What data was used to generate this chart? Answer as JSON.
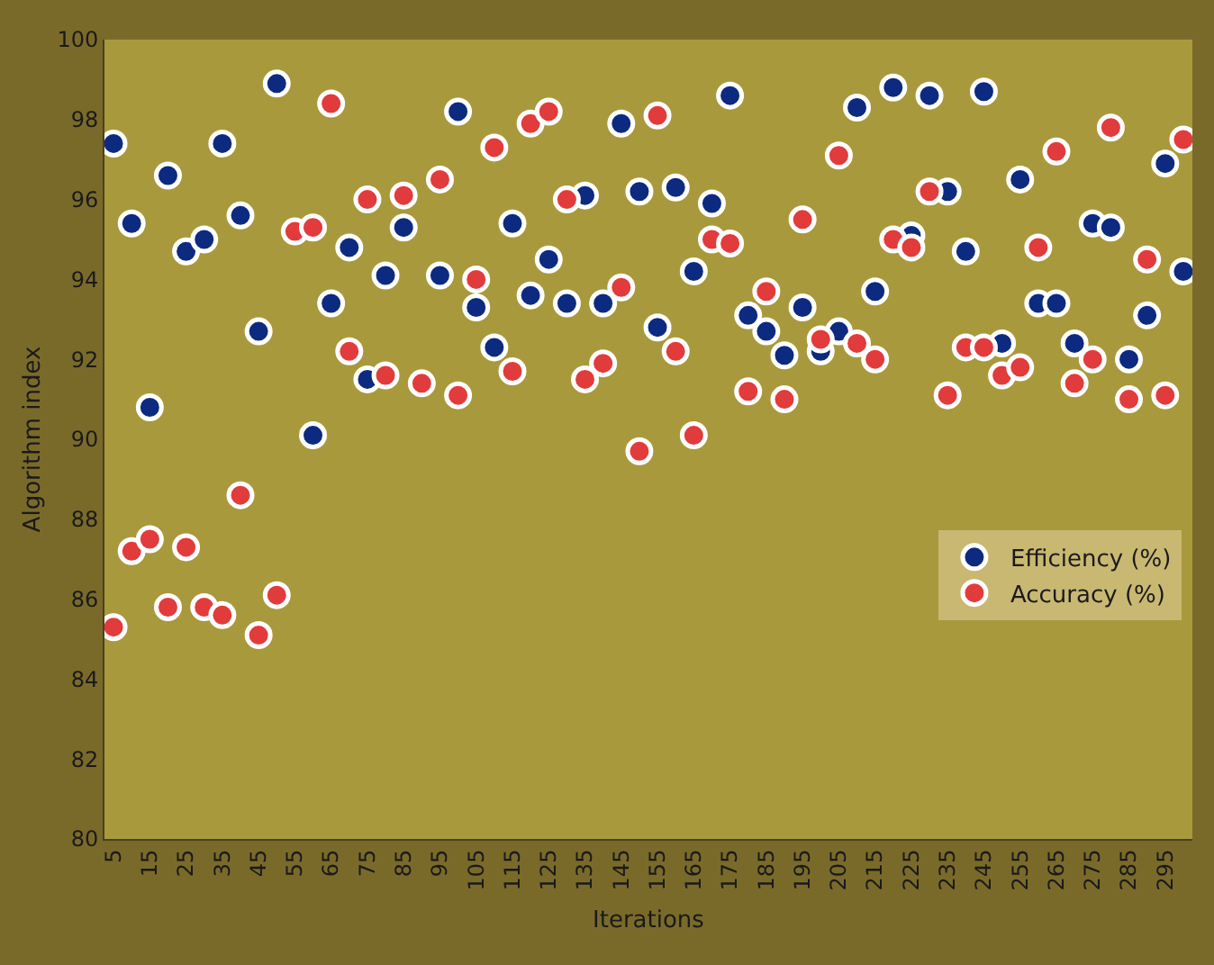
{
  "chart_data": {
    "type": "scatter",
    "xlabel": "Iterations",
    "ylabel": "Algorithm index",
    "x": [
      5,
      10,
      15,
      20,
      25,
      30,
      35,
      40,
      45,
      50,
      55,
      60,
      65,
      70,
      75,
      80,
      85,
      90,
      95,
      100,
      105,
      110,
      115,
      120,
      125,
      130,
      135,
      140,
      145,
      150,
      155,
      160,
      165,
      170,
      175,
      180,
      185,
      190,
      195,
      200,
      205,
      210,
      215,
      220,
      225,
      230,
      235,
      240,
      245,
      250,
      255,
      260,
      265,
      270,
      275,
      280,
      285,
      290,
      295,
      300
    ],
    "series": [
      {
        "name": "Efficiency (%)",
        "color": "#0b2a80",
        "values": [
          97.4,
          95.4,
          90.8,
          96.6,
          94.7,
          95.0,
          97.4,
          95.6,
          92.7,
          98.9,
          null,
          90.1,
          93.4,
          94.8,
          91.5,
          94.1,
          95.3,
          null,
          94.1,
          98.2,
          93.3,
          92.3,
          95.4,
          93.6,
          94.5,
          93.4,
          96.1,
          93.4,
          97.9,
          96.2,
          92.8,
          96.3,
          94.2,
          95.9,
          98.6,
          93.1,
          92.7,
          92.1,
          93.3,
          92.2,
          92.7,
          98.3,
          93.7,
          98.8,
          95.1,
          98.6,
          96.2,
          94.7,
          98.7,
          92.4,
          96.5,
          93.4,
          93.4,
          92.4,
          95.4,
          95.3,
          92.0,
          93.1,
          96.9,
          94.2
        ]
      },
      {
        "name": "Accuracy (%)",
        "color": "#e23b3b",
        "values": [
          85.3,
          87.2,
          87.5,
          85.8,
          87.3,
          85.8,
          85.6,
          88.6,
          85.1,
          86.1,
          95.2,
          95.3,
          98.4,
          92.2,
          96.0,
          91.6,
          96.1,
          91.4,
          96.5,
          91.1,
          94.0,
          97.3,
          91.7,
          97.9,
          98.2,
          96.0,
          91.5,
          91.9,
          93.8,
          89.7,
          98.1,
          92.2,
          90.1,
          95.0,
          94.9,
          91.2,
          93.7,
          91.0,
          95.5,
          92.5,
          97.1,
          92.4,
          92.0,
          95.0,
          94.8,
          96.2,
          91.1,
          92.3,
          92.3,
          91.6,
          91.8,
          94.8,
          97.2,
          91.4,
          92.0,
          97.8,
          91.0,
          94.5,
          91.1,
          97.5
        ]
      }
    ],
    "xlim": [
      2.5,
      302.5
    ],
    "xticks": [
      5,
      15,
      25,
      35,
      45,
      55,
      65,
      75,
      85,
      95,
      105,
      115,
      125,
      135,
      145,
      155,
      165,
      175,
      185,
      195,
      205,
      215,
      225,
      235,
      245,
      255,
      265,
      275,
      285,
      295
    ],
    "ylim": [
      80,
      100
    ],
    "yticks": [
      80,
      82,
      84,
      86,
      88,
      90,
      92,
      94,
      96,
      98,
      100
    ],
    "grid": false,
    "legend": "right",
    "marker": "circle"
  }
}
